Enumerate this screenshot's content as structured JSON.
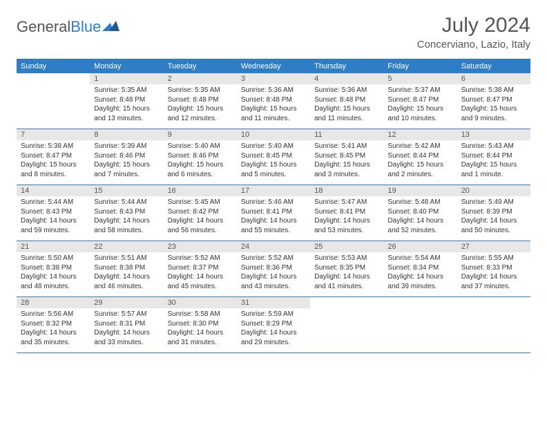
{
  "logo": {
    "text1": "General",
    "text2": "Blue"
  },
  "title": "July 2024",
  "location": "Concerviano, Lazio, Italy",
  "colors": {
    "accent": "#2f7dc4",
    "dayheader_bg": "#e7e7e7",
    "text": "#333333"
  },
  "daynames": [
    "Sunday",
    "Monday",
    "Tuesday",
    "Wednesday",
    "Thursday",
    "Friday",
    "Saturday"
  ],
  "weeks": [
    [
      {
        "n": "",
        "lines": []
      },
      {
        "n": "1",
        "lines": [
          "Sunrise: 5:35 AM",
          "Sunset: 8:48 PM",
          "Daylight: 15 hours and 13 minutes."
        ]
      },
      {
        "n": "2",
        "lines": [
          "Sunrise: 5:35 AM",
          "Sunset: 8:48 PM",
          "Daylight: 15 hours and 12 minutes."
        ]
      },
      {
        "n": "3",
        "lines": [
          "Sunrise: 5:36 AM",
          "Sunset: 8:48 PM",
          "Daylight: 15 hours and 11 minutes."
        ]
      },
      {
        "n": "4",
        "lines": [
          "Sunrise: 5:36 AM",
          "Sunset: 8:48 PM",
          "Daylight: 15 hours and 11 minutes."
        ]
      },
      {
        "n": "5",
        "lines": [
          "Sunrise: 5:37 AM",
          "Sunset: 8:47 PM",
          "Daylight: 15 hours and 10 minutes."
        ]
      },
      {
        "n": "6",
        "lines": [
          "Sunrise: 5:38 AM",
          "Sunset: 8:47 PM",
          "Daylight: 15 hours and 9 minutes."
        ]
      }
    ],
    [
      {
        "n": "7",
        "lines": [
          "Sunrise: 5:38 AM",
          "Sunset: 8:47 PM",
          "Daylight: 15 hours and 8 minutes."
        ]
      },
      {
        "n": "8",
        "lines": [
          "Sunrise: 5:39 AM",
          "Sunset: 8:46 PM",
          "Daylight: 15 hours and 7 minutes."
        ]
      },
      {
        "n": "9",
        "lines": [
          "Sunrise: 5:40 AM",
          "Sunset: 8:46 PM",
          "Daylight: 15 hours and 6 minutes."
        ]
      },
      {
        "n": "10",
        "lines": [
          "Sunrise: 5:40 AM",
          "Sunset: 8:45 PM",
          "Daylight: 15 hours and 5 minutes."
        ]
      },
      {
        "n": "11",
        "lines": [
          "Sunrise: 5:41 AM",
          "Sunset: 8:45 PM",
          "Daylight: 15 hours and 3 minutes."
        ]
      },
      {
        "n": "12",
        "lines": [
          "Sunrise: 5:42 AM",
          "Sunset: 8:44 PM",
          "Daylight: 15 hours and 2 minutes."
        ]
      },
      {
        "n": "13",
        "lines": [
          "Sunrise: 5:43 AM",
          "Sunset: 8:44 PM",
          "Daylight: 15 hours and 1 minute."
        ]
      }
    ],
    [
      {
        "n": "14",
        "lines": [
          "Sunrise: 5:44 AM",
          "Sunset: 8:43 PM",
          "Daylight: 14 hours and 59 minutes."
        ]
      },
      {
        "n": "15",
        "lines": [
          "Sunrise: 5:44 AM",
          "Sunset: 8:43 PM",
          "Daylight: 14 hours and 58 minutes."
        ]
      },
      {
        "n": "16",
        "lines": [
          "Sunrise: 5:45 AM",
          "Sunset: 8:42 PM",
          "Daylight: 14 hours and 56 minutes."
        ]
      },
      {
        "n": "17",
        "lines": [
          "Sunrise: 5:46 AM",
          "Sunset: 8:41 PM",
          "Daylight: 14 hours and 55 minutes."
        ]
      },
      {
        "n": "18",
        "lines": [
          "Sunrise: 5:47 AM",
          "Sunset: 8:41 PM",
          "Daylight: 14 hours and 53 minutes."
        ]
      },
      {
        "n": "19",
        "lines": [
          "Sunrise: 5:48 AM",
          "Sunset: 8:40 PM",
          "Daylight: 14 hours and 52 minutes."
        ]
      },
      {
        "n": "20",
        "lines": [
          "Sunrise: 5:49 AM",
          "Sunset: 8:39 PM",
          "Daylight: 14 hours and 50 minutes."
        ]
      }
    ],
    [
      {
        "n": "21",
        "lines": [
          "Sunrise: 5:50 AM",
          "Sunset: 8:38 PM",
          "Daylight: 14 hours and 48 minutes."
        ]
      },
      {
        "n": "22",
        "lines": [
          "Sunrise: 5:51 AM",
          "Sunset: 8:38 PM",
          "Daylight: 14 hours and 46 minutes."
        ]
      },
      {
        "n": "23",
        "lines": [
          "Sunrise: 5:52 AM",
          "Sunset: 8:37 PM",
          "Daylight: 14 hours and 45 minutes."
        ]
      },
      {
        "n": "24",
        "lines": [
          "Sunrise: 5:52 AM",
          "Sunset: 8:36 PM",
          "Daylight: 14 hours and 43 minutes."
        ]
      },
      {
        "n": "25",
        "lines": [
          "Sunrise: 5:53 AM",
          "Sunset: 8:35 PM",
          "Daylight: 14 hours and 41 minutes."
        ]
      },
      {
        "n": "26",
        "lines": [
          "Sunrise: 5:54 AM",
          "Sunset: 8:34 PM",
          "Daylight: 14 hours and 39 minutes."
        ]
      },
      {
        "n": "27",
        "lines": [
          "Sunrise: 5:55 AM",
          "Sunset: 8:33 PM",
          "Daylight: 14 hours and 37 minutes."
        ]
      }
    ],
    [
      {
        "n": "28",
        "lines": [
          "Sunrise: 5:56 AM",
          "Sunset: 8:32 PM",
          "Daylight: 14 hours and 35 minutes."
        ]
      },
      {
        "n": "29",
        "lines": [
          "Sunrise: 5:57 AM",
          "Sunset: 8:31 PM",
          "Daylight: 14 hours and 33 minutes."
        ]
      },
      {
        "n": "30",
        "lines": [
          "Sunrise: 5:58 AM",
          "Sunset: 8:30 PM",
          "Daylight: 14 hours and 31 minutes."
        ]
      },
      {
        "n": "31",
        "lines": [
          "Sunrise: 5:59 AM",
          "Sunset: 8:29 PM",
          "Daylight: 14 hours and 29 minutes."
        ]
      },
      {
        "n": "",
        "lines": []
      },
      {
        "n": "",
        "lines": []
      },
      {
        "n": "",
        "lines": []
      }
    ]
  ]
}
